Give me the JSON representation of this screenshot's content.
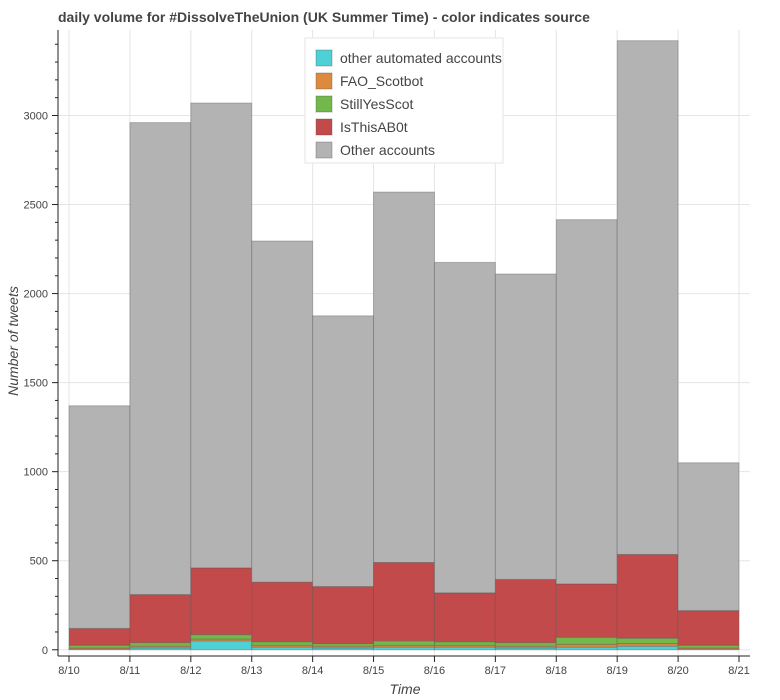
{
  "chart_data": {
    "type": "bar",
    "stacked": true,
    "title": "daily volume for #DissolveTheUnion (UK Summer Time) - color indicates source",
    "xlabel": "Time",
    "ylabel": "Number of tweets",
    "x_ticks": [
      "8/10",
      "8/11",
      "8/12",
      "8/13",
      "8/14",
      "8/15",
      "8/16",
      "8/17",
      "8/18",
      "8/19",
      "8/20",
      "8/21"
    ],
    "y_ticks": [
      0,
      500,
      1000,
      1500,
      2000,
      2500,
      3000
    ],
    "ylim": [
      -35,
      3480
    ],
    "grid": true,
    "legend_position": "top-center",
    "bins": [
      {
        "start": "8/10",
        "end": "8/11"
      },
      {
        "start": "8/11",
        "end": "8/12"
      },
      {
        "start": "8/12",
        "end": "8/13"
      },
      {
        "start": "8/13",
        "end": "8/14"
      },
      {
        "start": "8/14",
        "end": "8/15"
      },
      {
        "start": "8/15",
        "end": "8/16"
      },
      {
        "start": "8/16",
        "end": "8/17"
      },
      {
        "start": "8/17",
        "end": "8/18"
      },
      {
        "start": "8/18",
        "end": "8/19"
      },
      {
        "start": "8/19",
        "end": "8/20"
      },
      {
        "start": "8/20",
        "end": "8/21"
      }
    ],
    "series": [
      {
        "name": "other automated accounts",
        "color": "#4dd0d6",
        "values": [
          5,
          10,
          50,
          15,
          10,
          15,
          15,
          10,
          15,
          20,
          5
        ]
      },
      {
        "name": "FAO_Scotbot",
        "color": "#dd8a3e",
        "values": [
          5,
          10,
          10,
          10,
          10,
          10,
          10,
          10,
          15,
          15,
          5
        ]
      },
      {
        "name": "StillYesScot",
        "color": "#72b84b",
        "values": [
          15,
          20,
          25,
          20,
          15,
          25,
          20,
          20,
          40,
          30,
          15
        ]
      },
      {
        "name": "IsThisAB0t",
        "color": "#c34a4a",
        "values": [
          95,
          270,
          375,
          335,
          320,
          440,
          275,
          355,
          300,
          470,
          195
        ]
      },
      {
        "name": "Other accounts",
        "color": "#b3b3b3",
        "values": [
          1250,
          2650,
          2610,
          1915,
          1520,
          2080,
          1855,
          1715,
          2045,
          2885,
          830
        ]
      }
    ]
  }
}
